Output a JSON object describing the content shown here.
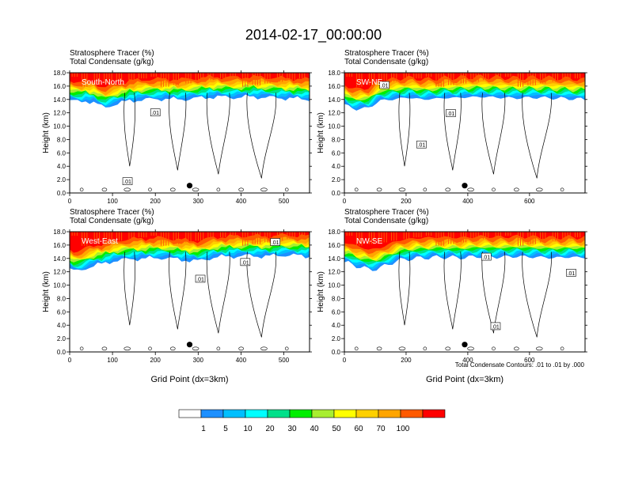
{
  "figure_title": "2014-02-17_00:00:00",
  "chart_data": [
    {
      "type": "heatmap",
      "panel": "South-North",
      "title_line1": "Stratosphere Tracer   (%)",
      "title_line2": "Total Condensate   (g/kg)",
      "ylabel": "Height (km)",
      "xlabel": "",
      "xlim": [
        0,
        560
      ],
      "ylim": [
        0,
        18
      ],
      "xticks": [
        0,
        100,
        200,
        300,
        400,
        500
      ],
      "yticks": [
        "0.0",
        "2.0",
        "4.0",
        "6.0",
        "8.0",
        "10.0",
        "12.0",
        "14.0",
        "16.0",
        "18.0"
      ],
      "marker_x": 280,
      "contour_labels": [
        {
          "text": ".01",
          "x": 200,
          "y": 12.0
        },
        {
          "text": ".01",
          "x": 135,
          "y": 1.7
        }
      ],
      "tracer_profile": {
        "x": [
          0,
          20,
          40,
          60,
          80,
          100,
          140,
          180,
          220,
          260,
          300,
          340,
          380,
          420,
          460,
          500,
          540,
          560
        ],
        "base_km": [
          13.9,
          13.6,
          13.8,
          13.5,
          12.7,
          13.2,
          13.8,
          14.0,
          14.1,
          14.0,
          14.2,
          14.4,
          14.3,
          14.4,
          14.3,
          14.2,
          14.1,
          14.0
        ]
      }
    },
    {
      "type": "heatmap",
      "panel": "SW-NE",
      "title_line1": "Stratosphere Tracer   (%)",
      "title_line2": "Total Condensate   (g/kg)",
      "ylabel": "Height (km)",
      "xlabel": "",
      "xlim": [
        0,
        780
      ],
      "ylim": [
        0,
        18
      ],
      "xticks": [
        0,
        200,
        400,
        600
      ],
      "yticks": [
        "0.0",
        "2.0",
        "4.0",
        "6.0",
        "8.0",
        "10.0",
        "12.0",
        "14.0",
        "16.0",
        "18.0"
      ],
      "marker_x": 390,
      "contour_labels": [
        {
          "text": ".01",
          "x": 130,
          "y": 16.1
        },
        {
          "text": ".01",
          "x": 250,
          "y": 7.2
        },
        {
          "text": ".01",
          "x": 345,
          "y": 11.9
        }
      ],
      "tracer_profile": {
        "x": [
          0,
          40,
          80,
          120,
          160,
          200,
          260,
          320,
          380,
          440,
          500,
          560,
          620,
          680,
          740,
          780
        ],
        "base_km": [
          13.2,
          12.5,
          12.8,
          13.9,
          14.0,
          14.3,
          14.0,
          14.2,
          14.3,
          14.4,
          14.3,
          14.2,
          14.3,
          14.2,
          14.1,
          14.0
        ]
      }
    },
    {
      "type": "heatmap",
      "panel": "West-East",
      "title_line1": "Stratosphere Tracer   (%)",
      "title_line2": "Total Condensate   (g/kg)",
      "ylabel": "Height (km)",
      "xlabel": "Grid Point (dx=3km)",
      "xlim": [
        0,
        560
      ],
      "ylim": [
        0,
        18
      ],
      "xticks": [
        0,
        100,
        200,
        300,
        400,
        500
      ],
      "yticks": [
        "0.0",
        "2.0",
        "4.0",
        "6.0",
        "8.0",
        "10.0",
        "12.0",
        "14.0",
        "16.0",
        "18.0"
      ],
      "marker_x": 280,
      "contour_labels": [
        {
          "text": ".01",
          "x": 305,
          "y": 10.9
        },
        {
          "text": ".01",
          "x": 410,
          "y": 13.4
        },
        {
          "text": ".01",
          "x": 480,
          "y": 16.4
        }
      ],
      "tracer_profile": {
        "x": [
          0,
          20,
          40,
          60,
          80,
          100,
          140,
          180,
          220,
          260,
          300,
          340,
          380,
          420,
          460,
          500,
          540,
          560
        ],
        "base_km": [
          12.4,
          12.0,
          12.6,
          13.0,
          13.2,
          13.6,
          13.9,
          14.0,
          14.1,
          13.8,
          13.6,
          14.2,
          14.3,
          14.4,
          14.3,
          14.5,
          14.4,
          14.3
        ]
      }
    },
    {
      "type": "heatmap",
      "panel": "NW-SE",
      "title_line1": "Stratosphere Tracer   (%)",
      "title_line2": "Total Condensate   (g/kg)",
      "ylabel": "Height (km)",
      "xlabel": "Grid Point (dx=3km)",
      "xlim": [
        0,
        780
      ],
      "ylim": [
        0,
        18
      ],
      "xticks": [
        0,
        200,
        400,
        600
      ],
      "yticks": [
        "0.0",
        "2.0",
        "4.0",
        "6.0",
        "8.0",
        "10.0",
        "12.0",
        "14.0",
        "16.0",
        "18.0"
      ],
      "marker_x": 390,
      "contour_labels": [
        {
          "text": ".01",
          "x": 460,
          "y": 14.2
        },
        {
          "text": ".01",
          "x": 735,
          "y": 11.8
        },
        {
          "text": ".01",
          "x": 490,
          "y": 3.8
        }
      ],
      "tracer_profile": {
        "x": [
          0,
          40,
          80,
          120,
          160,
          200,
          260,
          320,
          380,
          440,
          500,
          560,
          620,
          680,
          740,
          780
        ],
        "base_km": [
          13.4,
          12.9,
          12.3,
          12.6,
          13.5,
          13.9,
          14.1,
          14.2,
          14.1,
          14.3,
          14.2,
          14.3,
          14.2,
          14.1,
          14.2,
          14.1
        ]
      }
    }
  ],
  "contour_note": "Total Condensate Contours: .01 to .01 by .000",
  "colorbar": {
    "colors": [
      "#ffffff",
      "#1e90ff",
      "#00bfff",
      "#00ffff",
      "#00e08a",
      "#00ee00",
      "#a8ee30",
      "#ffff00",
      "#ffd000",
      "#ffa500",
      "#ff5a00",
      "#ff0000"
    ],
    "labels": [
      "1",
      "5",
      "10",
      "20",
      "30",
      "40",
      "50",
      "60",
      "70",
      "100"
    ]
  }
}
